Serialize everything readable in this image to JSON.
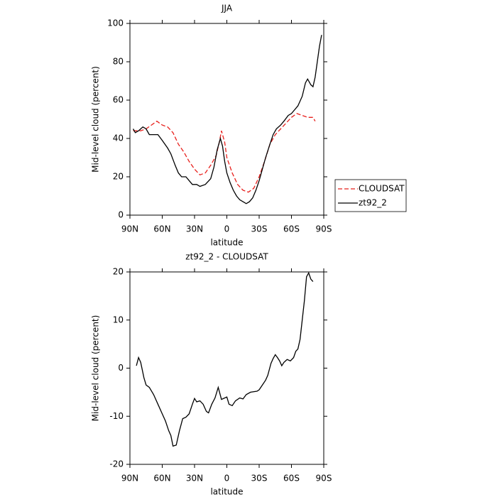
{
  "chart_data": [
    {
      "type": "line",
      "title": "JJA",
      "xlabel": "latitude",
      "ylabel": "Mid-level cloud (percent)",
      "xlim": [
        90,
        -90
      ],
      "xticks": [
        {
          "value": 90,
          "label": "90N"
        },
        {
          "value": 60,
          "label": "60N"
        },
        {
          "value": 30,
          "label": "30N"
        },
        0,
        {
          "value": -30,
          "label": "30S"
        },
        {
          "value": -60,
          "label": "60S"
        },
        {
          "value": -90,
          "label": "90S"
        }
      ],
      "ylim": [
        0,
        100
      ],
      "yticks": [
        0,
        20,
        40,
        60,
        80,
        100
      ],
      "legend": "outside right",
      "series": [
        {
          "name": "CLOUDSAT",
          "color": "#e8201c",
          "style": "dashed",
          "x": [
            87,
            80,
            75,
            70,
            65,
            60,
            55,
            50,
            45,
            40,
            35,
            30,
            25,
            20,
            15,
            10,
            7,
            5,
            2,
            0,
            -5,
            -10,
            -15,
            -20,
            -25,
            -30,
            -35,
            -40,
            -45,
            -50,
            -55,
            -60,
            -65,
            -70,
            -75,
            -80,
            -82
          ],
          "values": [
            44,
            44,
            45,
            47,
            49,
            47,
            46,
            43,
            37,
            33,
            28,
            24,
            21,
            22,
            26,
            31,
            38,
            44,
            38,
            30,
            22,
            16,
            13,
            12,
            14,
            20,
            28,
            37,
            42,
            45,
            48,
            51,
            53,
            52,
            51,
            51,
            49
          ]
        },
        {
          "name": "zt92_2",
          "color": "#000000",
          "style": "solid",
          "x": [
            87,
            85,
            82,
            78,
            75,
            72,
            68,
            64,
            60,
            55,
            52,
            48,
            45,
            42,
            38,
            35,
            32,
            28,
            25,
            20,
            15,
            12,
            9,
            6,
            4,
            2,
            0,
            -3,
            -6,
            -9,
            -12,
            -15,
            -18,
            -21,
            -24,
            -27,
            -30,
            -33,
            -36,
            -40,
            -43,
            -46,
            -50,
            -53,
            -57,
            -60,
            -63,
            -66,
            -70,
            -73,
            -75,
            -78,
            -80,
            -82,
            -84,
            -86,
            -88
          ],
          "values": [
            45,
            43,
            44,
            46,
            45,
            42,
            42,
            42,
            39,
            35,
            32,
            26,
            22,
            20,
            20,
            18,
            16,
            16,
            15,
            16,
            19,
            25,
            34,
            40,
            36,
            28,
            22,
            17,
            13,
            10,
            8,
            7,
            6,
            7,
            9,
            13,
            18,
            24,
            30,
            37,
            42,
            45,
            47,
            49,
            52,
            53,
            55,
            57,
            62,
            69,
            71,
            68,
            67,
            72,
            80,
            88,
            94
          ]
        }
      ]
    },
    {
      "type": "line",
      "title": "zt92_2 - CLOUDSAT",
      "xlabel": "latitude",
      "ylabel": "Mid-level cloud (percent)",
      "xlim": [
        90,
        -90
      ],
      "xticks": [
        {
          "value": 90,
          "label": "90N"
        },
        {
          "value": 60,
          "label": "60N"
        },
        {
          "value": 30,
          "label": "30N"
        },
        0,
        {
          "value": -30,
          "label": "30S"
        },
        {
          "value": -60,
          "label": "60S"
        },
        {
          "value": -90,
          "label": "90S"
        }
      ],
      "ylim": [
        -20,
        20
      ],
      "yticks": [
        -20,
        -10,
        0,
        10,
        20
      ],
      "series": [
        {
          "color": "#000000",
          "style": "solid",
          "x": [
            84,
            82,
            80,
            77,
            75,
            72,
            68,
            64,
            60,
            57,
            54,
            52,
            50,
            47,
            44,
            41,
            38,
            35,
            32,
            30,
            28,
            25,
            22,
            19,
            17,
            14,
            11,
            8,
            5,
            2,
            0,
            -2,
            -5,
            -8,
            -12,
            -15,
            -18,
            -22,
            -28,
            -30,
            -33,
            -36,
            -38,
            -41,
            -43,
            -45,
            -47,
            -49,
            -51,
            -53,
            -56,
            -59,
            -62,
            -64,
            -66,
            -68,
            -70,
            -72,
            -74,
            -76,
            -78,
            -80
          ],
          "values": [
            0.5,
            2.2,
            1.2,
            -2,
            -3.5,
            -4,
            -5.5,
            -7.5,
            -9.5,
            -11,
            -13,
            -14,
            -16.2,
            -16,
            -13,
            -10.5,
            -10.2,
            -9.5,
            -7.5,
            -6.3,
            -7,
            -6.8,
            -7.5,
            -9,
            -9.3,
            -7.5,
            -6.2,
            -4,
            -6.5,
            -6.2,
            -6,
            -7.5,
            -7.8,
            -6.8,
            -6.2,
            -6.4,
            -5.5,
            -5,
            -4.8,
            -4.5,
            -3.5,
            -2.5,
            -1.5,
            1,
            2,
            2.8,
            2.2,
            1.5,
            0.5,
            1.2,
            1.8,
            1.5,
            2.2,
            3.5,
            4,
            6,
            10,
            14,
            19,
            19.8,
            18.5,
            18
          ]
        }
      ]
    }
  ]
}
